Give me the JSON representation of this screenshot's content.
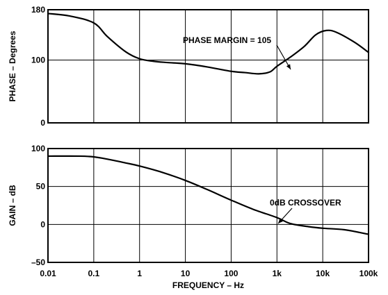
{
  "chart_data": [
    {
      "type": "line",
      "x_scale": "log",
      "xlim": [
        0.01,
        100000
      ],
      "ylim": [
        0,
        180
      ],
      "ylabel": "PHASE – Degrees",
      "yticks": [
        "0",
        "100",
        "180"
      ],
      "ytick_values": [
        0,
        100,
        180
      ],
      "grid": true,
      "annotation": {
        "text": "PHASE MARGIN = 105",
        "x": 2000,
        "y": 105
      },
      "series": [
        {
          "points": [
            [
              0.01,
              174
            ],
            [
              0.03,
              170
            ],
            [
              0.1,
              159
            ],
            [
              0.2,
              137
            ],
            [
              0.5,
              113
            ],
            [
              1,
              102
            ],
            [
              2,
              98
            ],
            [
              4,
              96
            ],
            [
              10,
              94
            ],
            [
              30,
              89
            ],
            [
              100,
              82
            ],
            [
              200,
              80
            ],
            [
              400,
              78
            ],
            [
              700,
              81
            ],
            [
              1000,
              90
            ],
            [
              2000,
              105
            ],
            [
              4000,
              122
            ],
            [
              7000,
              140
            ],
            [
              12000,
              147
            ],
            [
              20000,
              144
            ],
            [
              50000,
              128
            ],
            [
              100000,
              112
            ]
          ]
        }
      ]
    },
    {
      "type": "line",
      "x_scale": "log",
      "xlim": [
        0.01,
        100000
      ],
      "ylim": [
        -50,
        100
      ],
      "xlabel": "FREQUENCY – Hz",
      "ylabel": "GAIN – dB",
      "xticks": [
        "0.01",
        "0.1",
        "1",
        "10",
        "100",
        "1k",
        "10k",
        "100k"
      ],
      "xtick_values": [
        0.01,
        0.1,
        1,
        10,
        100,
        1000,
        10000,
        100000
      ],
      "yticks": [
        "–50",
        "0",
        "50",
        "100"
      ],
      "ytick_values": [
        -50,
        0,
        50,
        100
      ],
      "grid": true,
      "annotation": {
        "text": "0dB CROSSOVER",
        "x": 2000,
        "y": 0
      },
      "series": [
        {
          "points": [
            [
              0.01,
              90
            ],
            [
              0.05,
              90
            ],
            [
              0.1,
              89
            ],
            [
              0.2,
              86
            ],
            [
              0.5,
              81
            ],
            [
              1,
              77
            ],
            [
              3,
              69
            ],
            [
              10,
              58
            ],
            [
              30,
              46
            ],
            [
              100,
              32
            ],
            [
              300,
              20
            ],
            [
              1000,
              9
            ],
            [
              2000,
              1
            ],
            [
              5000,
              -3
            ],
            [
              10000,
              -5
            ],
            [
              30000,
              -7
            ],
            [
              100000,
              -13
            ]
          ]
        }
      ]
    }
  ]
}
